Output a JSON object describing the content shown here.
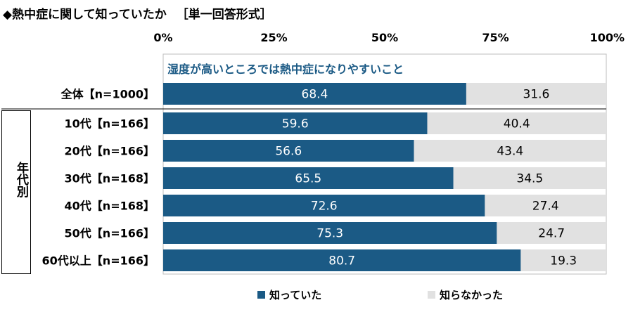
{
  "title": "◆熱中症に関して知っていたか",
  "subtitle": "［単一回答形式］",
  "section_label": "湿度が高いところでは熱中症になりやすいこと",
  "group_label": "年代別",
  "colors": {
    "known": "#1b5a85",
    "unknown": "#e1e1e1",
    "label_dark": "#ffffff",
    "label_light": "#000000"
  },
  "legend": [
    {
      "name": "知っていた",
      "color": "#1b5a85"
    },
    {
      "name": "知らなかった",
      "color": "#e1e1e1"
    }
  ],
  "chart_data": {
    "type": "bar",
    "orientation": "horizontal",
    "stacked": true,
    "x_ticks": [
      "0%",
      "25%",
      "50%",
      "75%",
      "100%"
    ],
    "xlim": [
      0,
      100
    ],
    "categories": [
      "全体【n=1000】",
      "10代【n=166】",
      "20代【n=166】",
      "30代【n=168】",
      "40代【n=168】",
      "50代【n=166】",
      "60代以上【n=166】"
    ],
    "series": [
      {
        "name": "知っていた",
        "values": [
          68.4,
          59.6,
          56.6,
          65.5,
          72.6,
          75.3,
          80.7
        ]
      },
      {
        "name": "知らなかった",
        "values": [
          31.6,
          40.4,
          43.4,
          34.5,
          27.4,
          24.7,
          19.3
        ]
      }
    ],
    "legend_position": "bottom"
  }
}
